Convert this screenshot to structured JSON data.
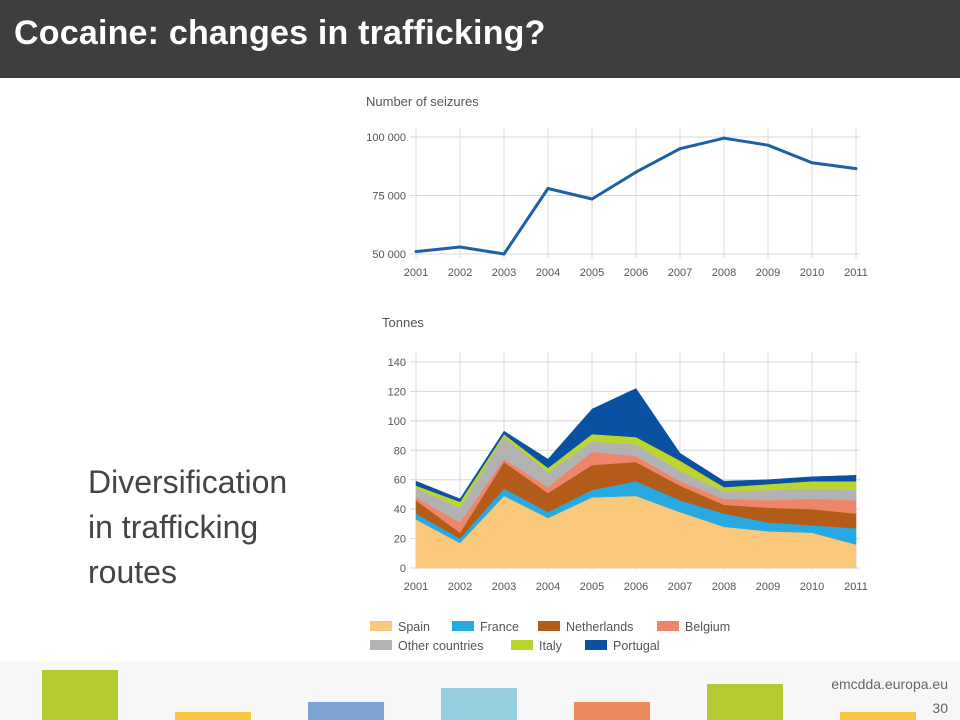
{
  "slide": {
    "title": "Cocaine: changes in trafficking?",
    "body_lines": [
      "Diversification",
      "in trafficking",
      "routes"
    ],
    "footer_url": "emcdda.europa.eu",
    "page_number": "30"
  },
  "colors": {
    "header_bg": "#3e3e3d",
    "line": "#1f5fa3",
    "grid": "#d8d8d8",
    "footer_bars": [
      "#b5c930",
      "#f9c741",
      "#7da3d2",
      "#96cfdf",
      "#ee8a60",
      "#b5c930",
      "#f9c741"
    ]
  },
  "chart_data": [
    {
      "type": "line",
      "title": "Number of seizures",
      "categories": [
        "2001",
        "2002",
        "2003",
        "2004",
        "2005",
        "2006",
        "2007",
        "2008",
        "2009",
        "2010",
        "2011"
      ],
      "y_ticks": [
        {
          "v": 50000,
          "label": "50 000"
        },
        {
          "v": 75000,
          "label": "75 000"
        },
        {
          "v": 100000,
          "label": "100 000"
        }
      ],
      "ylim": [
        50000,
        100000
      ],
      "grid": true,
      "series": [
        {
          "color": "#1f5fa3",
          "values": [
            51000,
            53000,
            50000,
            78000,
            73500,
            85000,
            95000,
            99500,
            96500,
            89000,
            86500
          ]
        }
      ]
    },
    {
      "type": "area",
      "title": "Tonnes",
      "stacked": true,
      "categories": [
        "2001",
        "2002",
        "2003",
        "2004",
        "2005",
        "2006",
        "2007",
        "2008",
        "2009",
        "2010",
        "2011"
      ],
      "y_ticks": [
        0,
        20,
        40,
        60,
        80,
        100,
        120,
        140
      ],
      "ylim": [
        0,
        140
      ],
      "grid": true,
      "legend_position": "bottom",
      "series": [
        {
          "name": "Spain",
          "color": "#f9c87a",
          "values": [
            33,
            17,
            49,
            34,
            48,
            49,
            38,
            28,
            25,
            24,
            16
          ]
        },
        {
          "name": "France",
          "color": "#27aae1",
          "values": [
            4,
            3,
            5,
            4,
            5,
            10,
            8,
            9,
            6,
            5,
            11
          ]
        },
        {
          "name": "Netherlands",
          "color": "#b35c19",
          "values": [
            9,
            4,
            18,
            13,
            17,
            13,
            10,
            6,
            10,
            11,
            10
          ]
        },
        {
          "name": "Belgium",
          "color": "#f0856a",
          "values": [
            2,
            7,
            2,
            4,
            9,
            4,
            3,
            4,
            5,
            7,
            9
          ]
        },
        {
          "name": "Other countries",
          "color": "#b2b2b2",
          "values": [
            6,
            10,
            15,
            10,
            7,
            8,
            7,
            5,
            7,
            7,
            7
          ]
        },
        {
          "name": "Italy",
          "color": "#bcd430",
          "values": [
            2,
            4,
            2,
            3,
            5,
            5,
            7,
            3,
            4,
            5,
            6
          ]
        },
        {
          "name": "Portugal",
          "color": "#0a51a1",
          "values": [
            3,
            2,
            2,
            6,
            17,
            33,
            5,
            4,
            3,
            3,
            4
          ]
        }
      ]
    }
  ]
}
